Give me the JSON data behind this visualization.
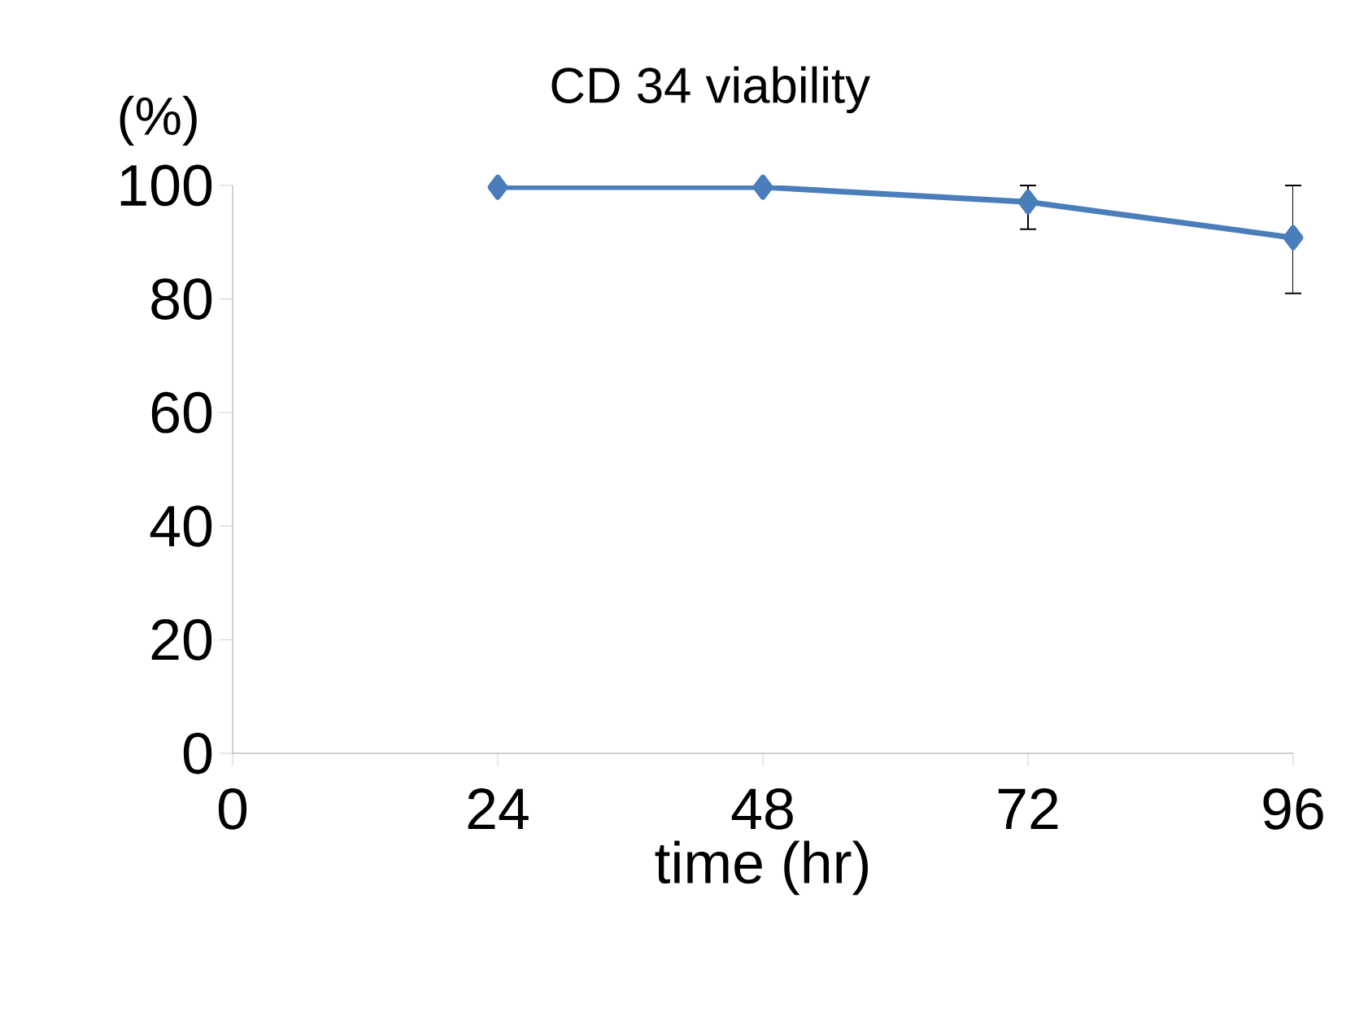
{
  "chart_data": {
    "type": "line",
    "title": "CD 34 viability",
    "xlabel": "time (hr)",
    "ylabel": "(%)",
    "x": [
      24,
      48,
      72,
      96
    ],
    "series": [
      {
        "color": "#4a7ebb",
        "values": [
          99.7,
          99.7,
          97.1,
          90.8
        ],
        "errors": [
          null,
          null,
          [
            92.3,
            100
          ],
          [
            81,
            100
          ]
        ]
      }
    ],
    "xlim": [
      0,
      96
    ],
    "xticks": [
      0,
      24,
      48,
      72,
      96
    ],
    "ylim": [
      0,
      100
    ],
    "yticks": [
      0,
      20,
      40,
      60,
      80,
      100
    ],
    "marker": "diamond",
    "line_style": "solid"
  }
}
